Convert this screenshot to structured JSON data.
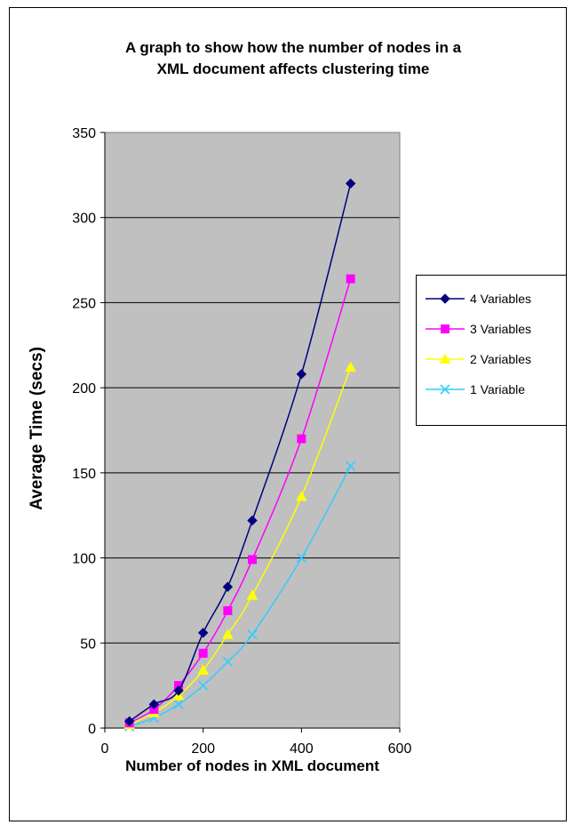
{
  "chart_data": {
    "type": "line",
    "title": "A graph to show how the number of nodes in a\nXML document affects clustering time",
    "xlabel": "Number of nodes in XML document",
    "ylabel": "Average Time (secs)",
    "xlim": [
      0,
      600
    ],
    "ylim": [
      0,
      350
    ],
    "xticks": [
      0,
      200,
      400,
      600
    ],
    "yticks": [
      0,
      50,
      100,
      150,
      200,
      250,
      300,
      350
    ],
    "grid": "horizontal",
    "plot_background": "#c0c0c0",
    "legend_position": "right",
    "x": [
      50,
      100,
      150,
      200,
      250,
      300,
      400,
      500
    ],
    "series": [
      {
        "name": "4 Variables",
        "marker": "diamond",
        "color": "#000080",
        "values": [
          4,
          14,
          22,
          56,
          83,
          122,
          208,
          320
        ]
      },
      {
        "name": "3 Variables",
        "marker": "square",
        "color": "#ff00ff",
        "values": [
          3,
          11,
          25,
          44,
          69,
          99,
          170,
          264
        ]
      },
      {
        "name": "2 Variables",
        "marker": "triangle",
        "color": "#ffff00",
        "values": [
          2,
          9,
          19,
          34,
          55,
          78,
          136,
          212
        ]
      },
      {
        "name": "1 Variable",
        "marker": "x",
        "color": "#33ccff",
        "values": [
          1,
          6,
          14,
          25,
          39,
          55,
          100,
          154
        ]
      }
    ]
  }
}
